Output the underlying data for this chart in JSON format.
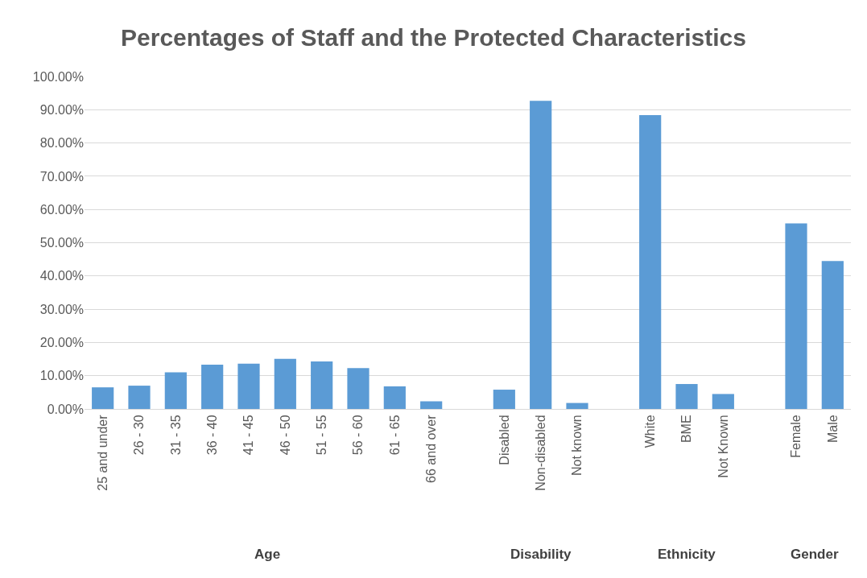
{
  "chart_data": {
    "type": "bar",
    "title": "Percentages of Staff and the Protected Characteristics",
    "categories": [
      "25 and under",
      "26 - 30",
      "31 - 35",
      "36 - 40",
      "41 - 45",
      "46 - 50",
      "51 - 55",
      "56 - 60",
      "61 - 65",
      "66 and over",
      null,
      "Disabled",
      "Non-disabled",
      "Not known",
      null,
      "White",
      "BME",
      "Not Known",
      null,
      "Female",
      "Male"
    ],
    "values": [
      6.5,
      7.0,
      11.0,
      13.3,
      13.6,
      15.1,
      14.3,
      12.3,
      6.8,
      2.3,
      null,
      5.8,
      92.7,
      1.8,
      null,
      88.4,
      7.5,
      4.5,
      null,
      55.8,
      44.5
    ],
    "color": "#5b9bd5",
    "ylim": [
      0,
      100
    ],
    "yticks": [
      {
        "value": 0,
        "label": "0.00%"
      },
      {
        "value": 10,
        "label": "10.00%"
      },
      {
        "value": 20,
        "label": "20.00%"
      },
      {
        "value": 30,
        "label": "30.00%"
      },
      {
        "value": 40,
        "label": "40.00%"
      },
      {
        "value": 50,
        "label": "50.00%"
      },
      {
        "value": 60,
        "label": "60.00%"
      },
      {
        "value": 70,
        "label": "70.00%"
      },
      {
        "value": 80,
        "label": "80.00%"
      },
      {
        "value": 90,
        "label": "90.00%"
      },
      {
        "value": 100,
        "label": "100.00%"
      }
    ],
    "grid": "y",
    "annotations": [
      "Age",
      "Disability",
      "Ethnicity",
      "Gender"
    ]
  }
}
